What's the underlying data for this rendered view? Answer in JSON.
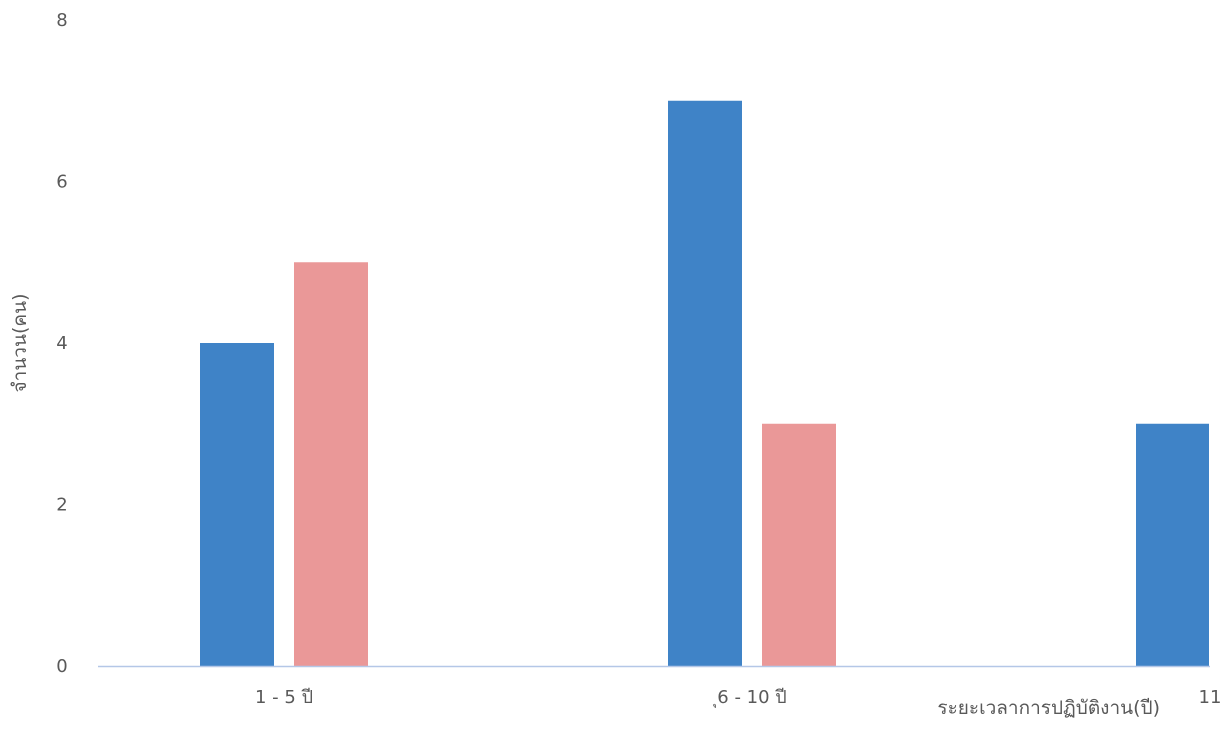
{
  "chart_data": {
    "type": "bar",
    "title": "",
    "xlabel": "ระยะเวลาการปฏิบัติงาน(ปี)",
    "ylabel": "จำนวน(คน)",
    "categories": [
      "1 - 5 ปี",
      "ุ6 - 10 ปี",
      "11"
    ],
    "yticks": [
      "0",
      "2",
      "4",
      "6",
      "8"
    ],
    "ylim": [
      0,
      8
    ],
    "grid": false,
    "legend": "none",
    "series": [
      {
        "values": [
          4,
          7,
          3
        ],
        "color": "#3f83c7"
      },
      {
        "values": [
          5,
          3,
          null
        ],
        "color": "#ea9898"
      }
    ]
  }
}
